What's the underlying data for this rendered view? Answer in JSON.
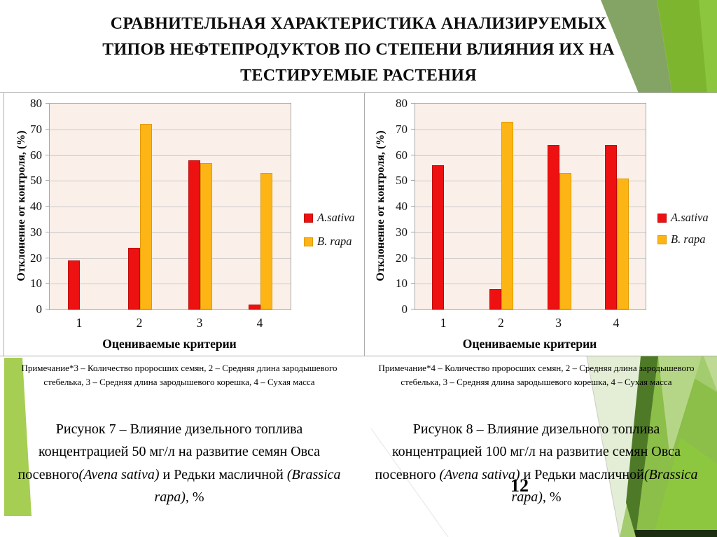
{
  "slide": {
    "title_lines": [
      "СРАВНИТЕЛЬНАЯ ХАРАКТЕРИСТИКА АНАЛИЗИРУЕМЫХ",
      "ТИПОВ НЕФТЕПРОДУКТОВ ПО СТЕПЕНИ ВЛИЯНИЯ ИХ НА",
      "ТЕСТИРУЕМЫЕ РАСТЕНИЯ"
    ],
    "page_number": "12"
  },
  "colors": {
    "sativa_red": "#ed1111",
    "sativa_red_border": "#c00808",
    "rapa_yellow": "#fdb515",
    "rapa_yellow_border": "#e09a00",
    "plot_bg": "#faf0e9",
    "gridline": "#c9c9c9",
    "green_bright": "#7eb52f",
    "green_light": "#8cc63f",
    "green_sage": "#84a465",
    "green_pale": "#e4eed6",
    "green_dark": "#4e7a28"
  },
  "chart_data": [
    {
      "type": "bar",
      "title": "",
      "categories": [
        "1",
        "2",
        "3",
        "4"
      ],
      "series": [
        {
          "name": "A.sativa",
          "color": "#ed1111",
          "border": "#c00808",
          "values": [
            19,
            24,
            58,
            2
          ]
        },
        {
          "name": "B. rapa",
          "color": "#fdb515",
          "border": "#e09a00",
          "values": [
            0,
            72,
            57,
            53
          ]
        }
      ],
      "xlabel": "Оцениваемые критерии",
      "ylabel": "Отклонение от контроля, (%)",
      "ylim": [
        0,
        80
      ],
      "ytick_step": 10,
      "grid": true,
      "legend_position": "right"
    },
    {
      "type": "bar",
      "title": "",
      "categories": [
        "1",
        "2",
        "3",
        "4"
      ],
      "series": [
        {
          "name": "A.sativa",
          "color": "#ed1111",
          "border": "#c00808",
          "values": [
            56,
            8,
            64,
            64
          ]
        },
        {
          "name": "B. rapa",
          "color": "#fdb515",
          "border": "#e09a00",
          "values": [
            0,
            73,
            53,
            51
          ]
        }
      ],
      "xlabel": "Оцениваемые критерии",
      "ylabel": "Отклонение от контроля, (%)",
      "ylim": [
        0,
        80
      ],
      "ytick_step": 10,
      "grid": true,
      "legend_position": "right"
    }
  ],
  "notes": {
    "left": "Примечание*3 – Количество проросших семян, 2 – Средняя длина зародышевого стебелька, 3 – Средняя длина зародышевого корешка, 4 – Сухая масса",
    "right": "Примечание*4 – Количество проросших семян, 2 – Средняя длина зародышевого стебелька, 3 – Средняя длина зародышевого корешка, 4 – Сухая масса"
  },
  "captions": {
    "left": {
      "p1": "Рисунок 7 – Влияние дизельного топлива концентрацией 50 мг/л на развитие семян Овса посевного",
      "i1": "(Avena sativa)",
      "p2": " и Редьки масличной ",
      "i2": "(Brassica rapa)",
      "p3": ", %"
    },
    "right": {
      "p1": "Рисунок 8 – Влияние дизельного топлива концентрацией 100 мг/л на развитие семян Овса посевного ",
      "i1": "(Avena sativa)",
      "p2": " и Редьки масличной",
      "i2": "(Brassica rapa)",
      "p3": ", %"
    }
  }
}
